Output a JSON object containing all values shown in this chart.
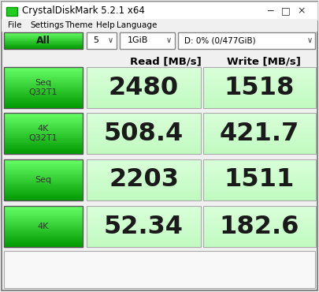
{
  "title": "CrystalDiskMark 5.2.1 x64",
  "menu_items": [
    "File",
    "Settings",
    "Theme",
    "Help",
    "Language"
  ],
  "all_button": "All",
  "dropdown1": "5",
  "dropdown2": "1GiB",
  "dropdown3": "D: 0% (0/477GiB)",
  "col_read": "Read [MB/s]",
  "col_write": "Write [MB/s]",
  "rows": [
    {
      "label": "Seq\nQ32T1",
      "read": "2480",
      "write": "1518"
    },
    {
      "label": "4K\nQ32T1",
      "read": "508.4",
      "write": "421.7"
    },
    {
      "label": "Seq",
      "read": "2203",
      "write": "1511"
    },
    {
      "label": "4K",
      "read": "52.34",
      "write": "182.6"
    }
  ],
  "bg_color": "#f0f0f0",
  "titlebar_color": "#ffffff",
  "green_bright": "#00e600",
  "green_dark": "#006600",
  "green_gradient_top": "#66ff66",
  "green_gradient_bot": "#009900",
  "cell_bg": "#e8ffe8",
  "cell_border": "#aaaaaa",
  "text_dark": "#1a1a1a",
  "text_number_color": "#1a1a1a",
  "label_text_color": "#444444",
  "window_border": "#999999",
  "white": "#ffffff",
  "bottom_box_color": "#f8f8f8"
}
